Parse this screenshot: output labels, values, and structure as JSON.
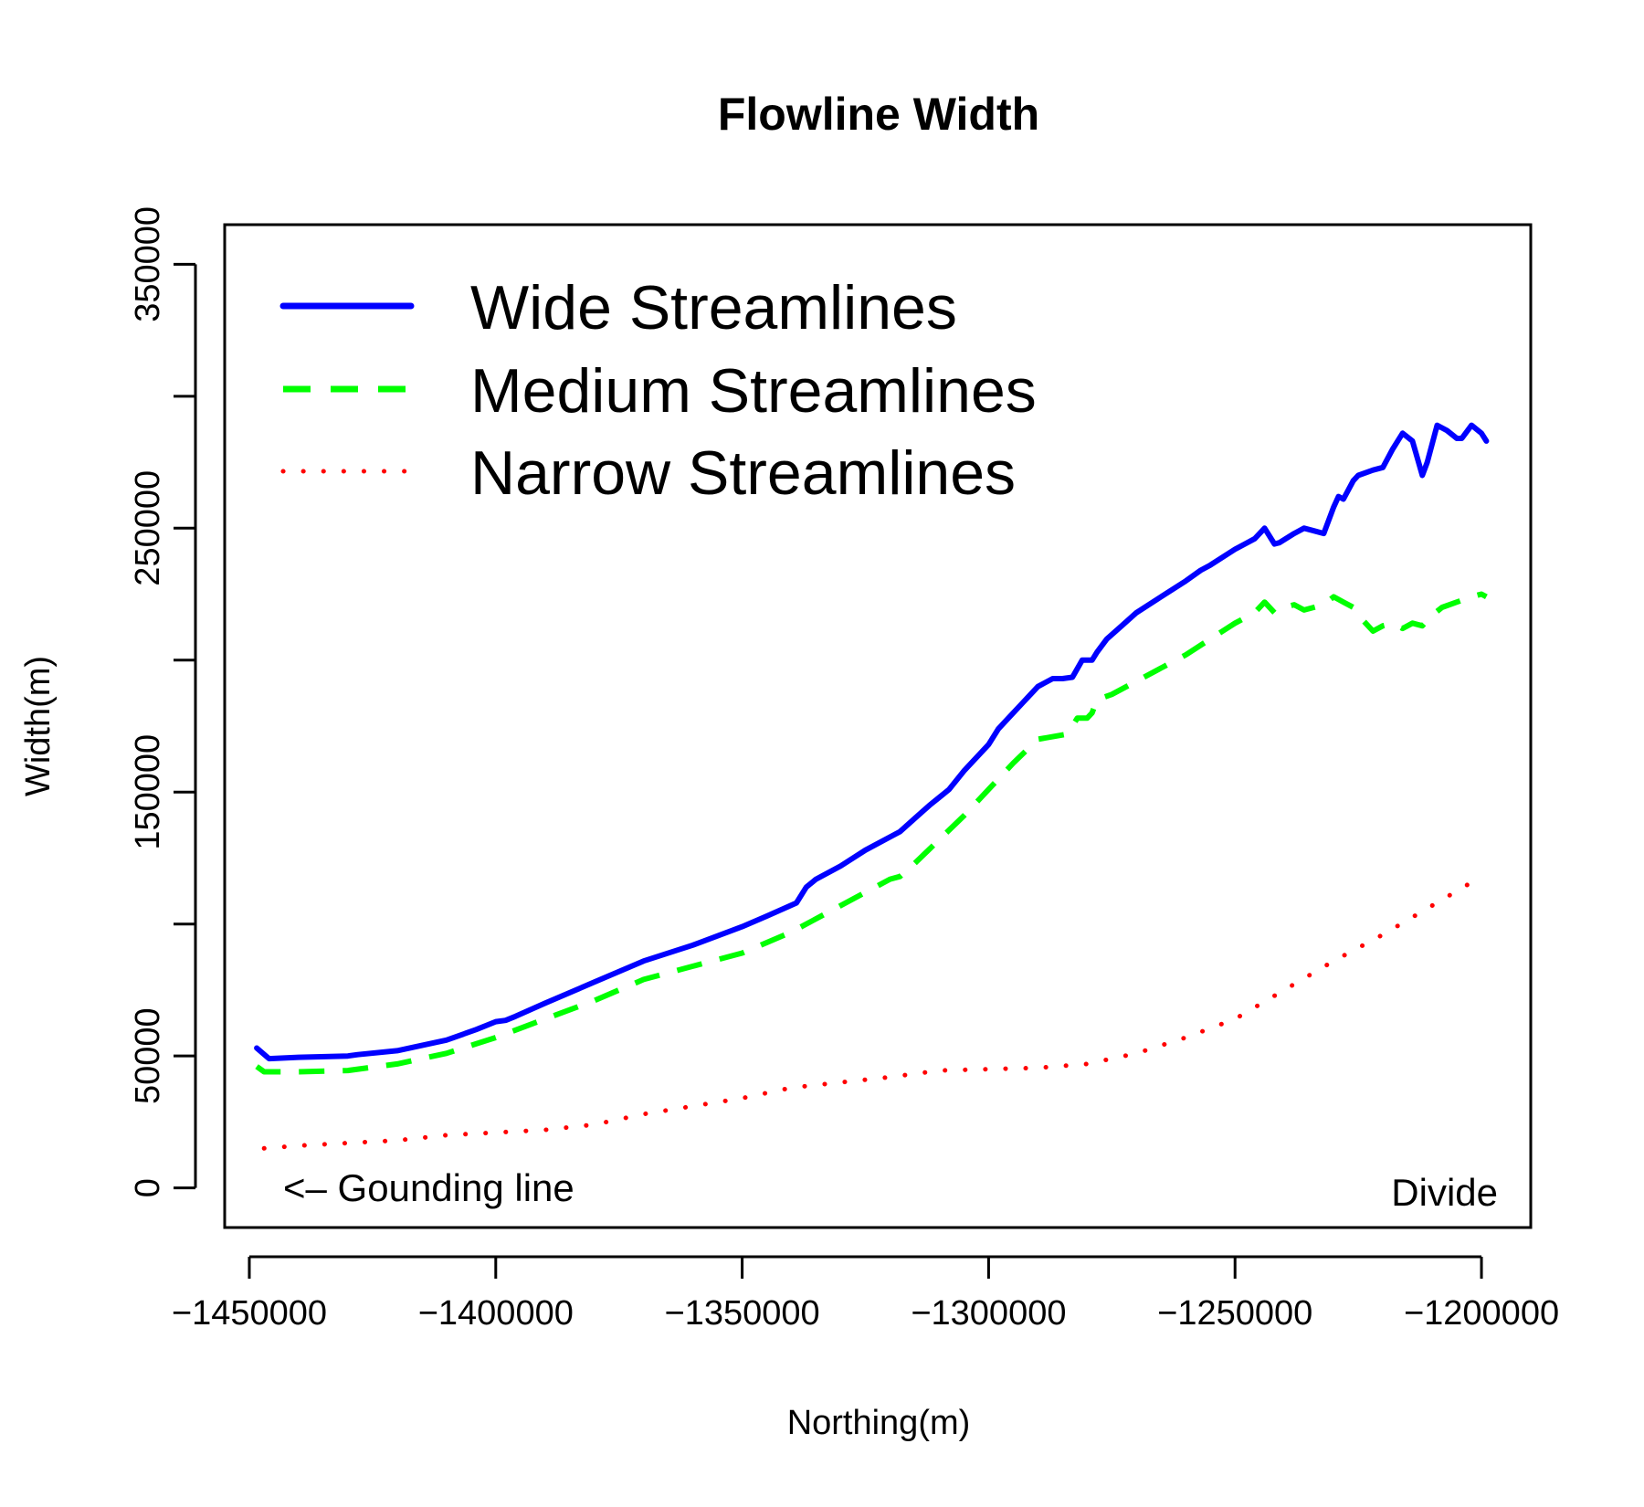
{
  "chart_data": {
    "type": "line",
    "title": "Flowline Width",
    "xlabel": "Northing(m)",
    "ylabel": "Width(m)",
    "xlim": [
      -1455000,
      -1190000
    ],
    "ylim": [
      -15000,
      365000
    ],
    "x_ticks": [
      -1450000,
      -1400000,
      -1350000,
      -1300000,
      -1250000,
      -1200000
    ],
    "x_tick_labels": [
      "−1450000",
      "−1400000",
      "−1350000",
      "−1300000",
      "−1250000",
      "−1200000"
    ],
    "y_ticks": [
      0,
      50000,
      100000,
      150000,
      200000,
      250000,
      300000,
      350000
    ],
    "y_tick_labels": [
      "0",
      "50000",
      "",
      "150000",
      "",
      "250000",
      "",
      "350000"
    ],
    "grid": false,
    "legend_position": "top-left",
    "annotations": {
      "left": "<– Gounding line",
      "right": "Divide"
    },
    "series": [
      {
        "name": "Wide Streamlines",
        "color": "#0000ff",
        "dash": "solid",
        "x": [
          -1448500,
          -1446000,
          -1440000,
          -1430000,
          -1428000,
          -1420000,
          -1410000,
          -1404000,
          -1400000,
          -1398000,
          -1396000,
          -1390000,
          -1380000,
          -1370000,
          -1360000,
          -1350000,
          -1345000,
          -1339000,
          -1337000,
          -1335000,
          -1330000,
          -1325000,
          -1320000,
          -1318000,
          -1315000,
          -1312000,
          -1310000,
          -1308000,
          -1305000,
          -1300000,
          -1298000,
          -1296000,
          -1293000,
          -1290000,
          -1287000,
          -1285000,
          -1283000,
          -1281000,
          -1279000,
          -1278000,
          -1276000,
          -1273000,
          -1270000,
          -1265000,
          -1260000,
          -1257000,
          -1255000,
          -1250000,
          -1248000,
          -1246000,
          -1244000,
          -1242000,
          -1241000,
          -1238000,
          -1236000,
          -1234000,
          -1232000,
          -1230000,
          -1229000,
          -1228000,
          -1226000,
          -1225000,
          -1222000,
          -1220000,
          -1218000,
          -1216000,
          -1214000,
          -1212000,
          -1211000,
          -1209000,
          -1207000,
          -1205000,
          -1204000,
          -1202000,
          -1200000,
          -1199000
        ],
        "y": [
          53000,
          49000,
          49500,
          50000,
          50500,
          52000,
          56000,
          60000,
          63000,
          63500,
          65000,
          70000,
          78000,
          86000,
          92000,
          99000,
          103000,
          108000,
          114000,
          117000,
          122000,
          128000,
          133000,
          135000,
          140000,
          145000,
          148000,
          151000,
          158000,
          168000,
          174000,
          178000,
          184000,
          190000,
          193000,
          193000,
          193500,
          200000,
          200000,
          203000,
          208000,
          213000,
          218000,
          224000,
          230000,
          234000,
          236000,
          242000,
          244000,
          246000,
          250000,
          244000,
          244500,
          248000,
          250000,
          249000,
          248000,
          258000,
          262000,
          261000,
          268000,
          270000,
          272000,
          273000,
          280000,
          286000,
          283000,
          270000,
          275000,
          289000,
          287000,
          284000,
          284000,
          289000,
          286000,
          283000
        ]
      },
      {
        "name": "Medium Streamlines",
        "color": "#00ff00",
        "dash": "dashed",
        "x": [
          -1448500,
          -1447000,
          -1440000,
          -1430000,
          -1420000,
          -1410000,
          -1400000,
          -1390000,
          -1380000,
          -1370000,
          -1360000,
          -1350000,
          -1340000,
          -1330000,
          -1320000,
          -1318000,
          -1315000,
          -1310000,
          -1305000,
          -1300000,
          -1295000,
          -1290000,
          -1287000,
          -1284000,
          -1282000,
          -1280000,
          -1279000,
          -1278000,
          -1275000,
          -1270000,
          -1265000,
          -1260000,
          -1255000,
          -1250000,
          -1246000,
          -1244000,
          -1242000,
          -1240000,
          -1238000,
          -1236000,
          -1234000,
          -1232000,
          -1230000,
          -1228000,
          -1226000,
          -1224000,
          -1222000,
          -1220000,
          -1218000,
          -1216000,
          -1214000,
          -1212000,
          -1210000,
          -1208000,
          -1205000,
          -1202000,
          -1200000,
          -1199000
        ],
        "y": [
          46000,
          44000,
          44000,
          44500,
          47000,
          51000,
          57000,
          64000,
          71000,
          79000,
          84000,
          89000,
          97000,
          107000,
          117000,
          118000,
          123000,
          132000,
          141000,
          151000,
          161000,
          170000,
          171000,
          172000,
          178000,
          178000,
          180000,
          185000,
          187000,
          192000,
          197000,
          202000,
          208000,
          214000,
          218000,
          222000,
          218000,
          220000,
          221000,
          219000,
          220000,
          221000,
          224000,
          222000,
          220000,
          215000,
          211000,
          213000,
          214000,
          212000,
          214000,
          213000,
          217000,
          220000,
          222000,
          224000,
          225000,
          224000
        ]
      },
      {
        "name": "Narrow Streamlines",
        "color": "#ff0000",
        "dash": "dotted",
        "x": [
          -1447000,
          -1440000,
          -1430000,
          -1420000,
          -1410000,
          -1400000,
          -1390000,
          -1380000,
          -1370000,
          -1360000,
          -1350000,
          -1340000,
          -1330000,
          -1320000,
          -1310000,
          -1300000,
          -1290000,
          -1280000,
          -1270000,
          -1260000,
          -1250000,
          -1240000,
          -1230000,
          -1220000,
          -1210000,
          -1200000
        ],
        "y": [
          15000,
          16000,
          17000,
          18000,
          20000,
          21000,
          22000,
          24000,
          28000,
          31000,
          34000,
          38000,
          40000,
          42000,
          44500,
          45000,
          45500,
          47000,
          51000,
          57000,
          64000,
          75000,
          86000,
          96000,
          107000,
          118000
        ]
      }
    ]
  }
}
